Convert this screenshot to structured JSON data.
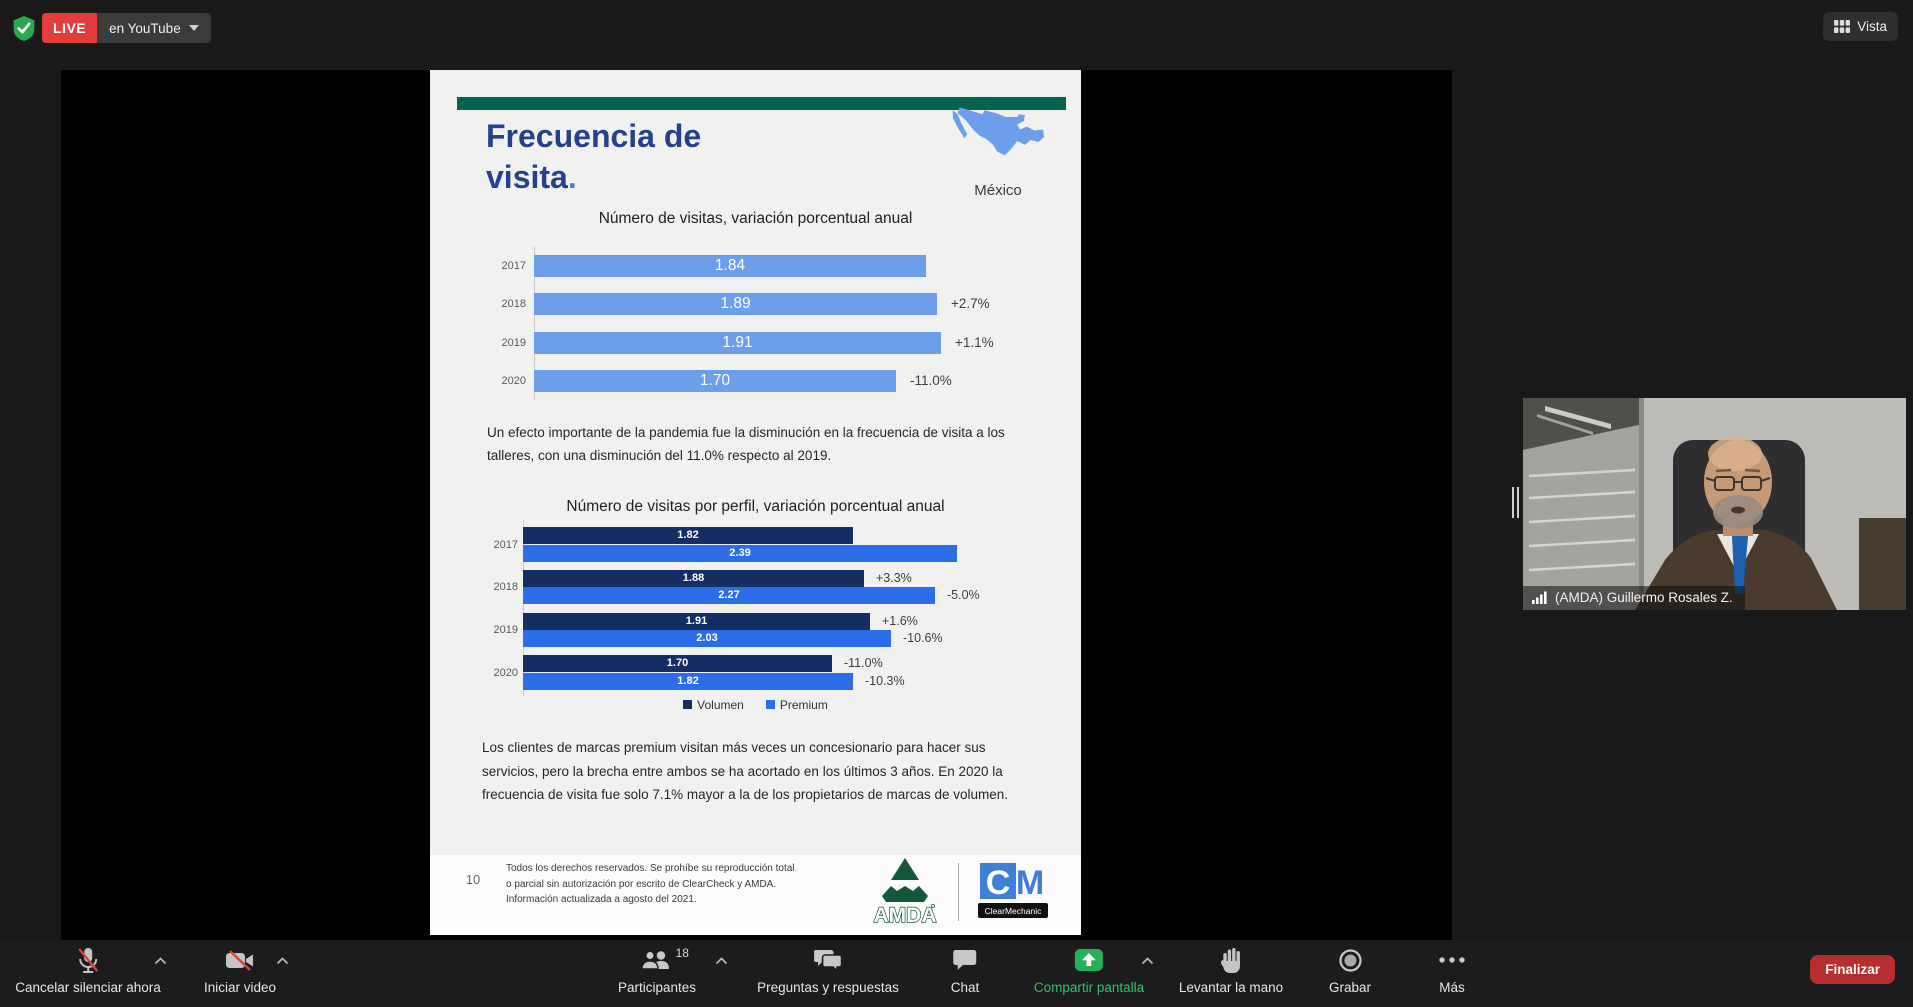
{
  "top_bar": {
    "live_badge": "LIVE",
    "stream_destination": "en YouTube",
    "view_label": "Vista"
  },
  "slide": {
    "title_line1": "Frecuencia de",
    "title_line2": "visita",
    "title_period": ".",
    "country_label": "México",
    "paragraph1": "Un efecto importante de la pandemia fue la disminución en la frecuencia de visita a los talleres, con una disminución del 11.0% respecto al 2019.",
    "paragraph2": "Los clientes de marcas premium visitan más veces un concesionario para hacer sus servicios, pero la brecha entre ambos se ha acortado en los últimos 3 años. En 2020 la frecuencia de visita fue solo 7.1% mayor a la de los propietarios de marcas de volumen.",
    "footer": {
      "page_number": "10",
      "disclaimer": "Todos los derechos reservados. Se prohíbe su reproducción total o parcial sin autorización por escrito de ClearCheck y AMDA. Información actualizada a agosto del 2021.",
      "amda_logo_text": "AMDA",
      "cm_logo_c": "C",
      "cm_logo_m": "M",
      "cm_logo_caption": "ClearMechanic"
    }
  },
  "chart_data": [
    {
      "type": "bar",
      "orientation": "horizontal",
      "title": "Número de visitas, variación porcentual anual",
      "categories": [
        "2017",
        "2018",
        "2019",
        "2020"
      ],
      "values": [
        1.84,
        1.89,
        1.91,
        1.7
      ],
      "value_labels": [
        "1.84",
        "1.89",
        "1.91",
        "1.70"
      ],
      "change_labels": [
        "",
        "+2.7%",
        "+1.1%",
        "-11.0%"
      ],
      "bar_color": "#6d9eeb",
      "xlim": [
        0,
        2.2
      ],
      "grid": false
    },
    {
      "type": "bar",
      "orientation": "horizontal",
      "title": "Número de visitas por perfil, variación porcentual anual",
      "categories": [
        "2017",
        "2018",
        "2019",
        "2020"
      ],
      "series": [
        {
          "name": "Volumen",
          "color": "#142d62",
          "values": [
            1.82,
            1.88,
            1.91,
            1.7
          ],
          "value_labels": [
            "1.82",
            "1.88",
            "1.91",
            "1.70"
          ],
          "change_labels": [
            "",
            "+3.3%",
            "+1.6%",
            "-11.0%"
          ]
        },
        {
          "name": "Premium",
          "color": "#2b6de9",
          "values": [
            2.39,
            2.27,
            2.03,
            1.82
          ],
          "value_labels": [
            "2.39",
            "2.27",
            "2.03",
            "1.82"
          ],
          "change_labels": [
            "",
            "-5.0%",
            "-10.6%",
            "-10.3%"
          ]
        }
      ],
      "legend_position": "bottom",
      "xlim": [
        0,
        2.6
      ],
      "grid": false
    }
  ],
  "participant_video": {
    "name_tag": "(AMDA) Guillermo Rosales Z."
  },
  "toolbar": {
    "mute": "Cancelar silenciar ahora",
    "start_video": "Iniciar video",
    "participants": "Participantes",
    "participants_count": "18",
    "qa": "Preguntas y respuestas",
    "chat": "Chat",
    "share": "Compartir pantalla",
    "raise_hand": "Levantar la mano",
    "record": "Grabar",
    "more": "Más",
    "end": "Finalizar"
  },
  "colors": {
    "live_red": "#e23d3d",
    "progress_green": "#45d06f",
    "slide_header_green": "#076350",
    "title_navy": "#24408f",
    "chart1_bar_blue": "#6d9eeb",
    "volumen_navy": "#142d62",
    "premium_blue": "#2b6de9",
    "share_green": "#27b05a",
    "end_button_red": "#b62e2e"
  }
}
